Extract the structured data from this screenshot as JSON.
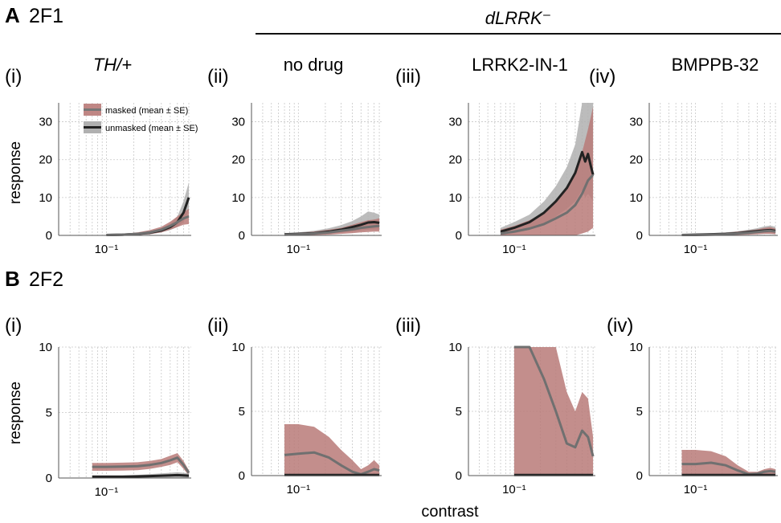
{
  "figure": {
    "sections": [
      {
        "letter": "A",
        "title": "2F1"
      },
      {
        "letter": "B",
        "title": "2F2"
      }
    ],
    "group_label": "dLRRK⁻",
    "conditions": [
      "TH/+",
      "no drug",
      "LRRK2-IN-1",
      "BMPPB-32"
    ],
    "panel_numerals": [
      "(i)",
      "(ii)",
      "(iii)",
      "(iv)"
    ],
    "ylabel": "response",
    "xlabel": "contrast",
    "x_tick_label": "10⁻¹",
    "legend": [
      {
        "label": "masked (mean ± SE)",
        "color": "#b97a78"
      },
      {
        "label": "unmasked (mean ± SE)",
        "color": "#2b2b2b"
      }
    ]
  },
  "colors": {
    "masked_band": "#b97a78",
    "masked_line": "#707070",
    "unmasked_band": "#b0b0b0",
    "unmasked_line": "#222222",
    "grid": "#c8c8c8"
  },
  "chart_data": [
    {
      "type": "line",
      "row": "A",
      "panel": "(i)",
      "condition": "TH/+",
      "xscale": "log",
      "xlim": [
        0.03,
        0.85
      ],
      "ylim": [
        0,
        35
      ],
      "yticks": [
        0,
        10,
        20,
        30
      ],
      "series": [
        {
          "name": "masked (mean ± SE)",
          "x": [
            0.1,
            0.15,
            0.22,
            0.3,
            0.4,
            0.5,
            0.6,
            0.7,
            0.8
          ],
          "mean": [
            0.1,
            0.2,
            0.4,
            0.8,
            1.5,
            2.5,
            3.5,
            4.5,
            5.0
          ],
          "lower": [
            0,
            0,
            0.1,
            0.3,
            0.8,
            1.5,
            2.2,
            2.8,
            3.0
          ],
          "upper": [
            0.3,
            0.4,
            0.8,
            1.4,
            2.3,
            3.6,
            5.0,
            6.2,
            7.0
          ]
        },
        {
          "name": "unmasked (mean ± SE)",
          "x": [
            0.1,
            0.15,
            0.22,
            0.3,
            0.4,
            0.5,
            0.6,
            0.7,
            0.8
          ],
          "mean": [
            0.1,
            0.2,
            0.4,
            0.7,
            1.3,
            2.2,
            3.5,
            6.0,
            10.0
          ],
          "lower": [
            0,
            0.05,
            0.2,
            0.4,
            0.8,
            1.4,
            2.2,
            3.5,
            6.5
          ],
          "upper": [
            0.3,
            0.4,
            0.7,
            1.1,
            1.9,
            3.1,
            5.0,
            9.0,
            14.0
          ]
        }
      ]
    },
    {
      "type": "line",
      "row": "A",
      "panel": "(ii)",
      "condition": "no drug",
      "xscale": "log",
      "xlim": [
        0.03,
        0.85
      ],
      "ylim": [
        0,
        35
      ],
      "yticks": [
        0,
        10,
        20,
        30
      ],
      "series": [
        {
          "name": "masked (mean ± SE)",
          "x": [
            0.07,
            0.1,
            0.15,
            0.22,
            0.3,
            0.4,
            0.5,
            0.6,
            0.7,
            0.8
          ],
          "mean": [
            0.2,
            0.3,
            0.5,
            0.8,
            1.2,
            1.6,
            2.0,
            2.2,
            2.4,
            2.5
          ],
          "lower": [
            0,
            0,
            0.1,
            0.2,
            0.4,
            0.6,
            0.8,
            0.9,
            1.0,
            1.0
          ],
          "upper": [
            0.5,
            0.7,
            1.0,
            1.5,
            2.0,
            2.8,
            3.5,
            4.0,
            4.2,
            4.5
          ]
        },
        {
          "name": "unmasked (mean ± SE)",
          "x": [
            0.07,
            0.1,
            0.15,
            0.22,
            0.3,
            0.4,
            0.5,
            0.6,
            0.7,
            0.8
          ],
          "mean": [
            0.3,
            0.4,
            0.6,
            1.0,
            1.5,
            2.2,
            2.8,
            3.4,
            3.5,
            3.3
          ],
          "lower": [
            0,
            0.1,
            0.2,
            0.4,
            0.7,
            1.0,
            1.2,
            1.5,
            1.6,
            1.5
          ],
          "upper": [
            0.6,
            0.8,
            1.2,
            1.9,
            2.7,
            3.8,
            5.0,
            6.3,
            6.0,
            5.5
          ]
        }
      ]
    },
    {
      "type": "line",
      "row": "A",
      "panel": "(iii)",
      "condition": "LRRK2-IN-1",
      "xscale": "log",
      "xlim": [
        0.03,
        0.85
      ],
      "ylim": [
        0,
        35
      ],
      "yticks": [
        0,
        10,
        20,
        30
      ],
      "series": [
        {
          "name": "masked (mean ± SE)",
          "x": [
            0.07,
            0.1,
            0.15,
            0.22,
            0.3,
            0.4,
            0.5,
            0.6,
            0.7,
            0.8
          ],
          "mean": [
            0.5,
            1.0,
            1.8,
            3.0,
            4.5,
            6.0,
            8.0,
            11.0,
            14.5,
            16.0
          ],
          "lower": [
            0,
            0,
            0,
            0,
            0,
            0,
            0,
            0.5,
            1.0,
            2.0
          ],
          "upper": [
            1.5,
            2.5,
            4.0,
            6.0,
            9.0,
            12.0,
            16.0,
            22.0,
            28.0,
            34.0
          ]
        },
        {
          "name": "unmasked (mean ± SE)",
          "x": [
            0.07,
            0.1,
            0.15,
            0.22,
            0.3,
            0.4,
            0.5,
            0.6,
            0.65,
            0.7,
            0.75,
            0.8
          ],
          "mean": [
            1.0,
            2.0,
            3.5,
            6.0,
            9.0,
            12.5,
            16.5,
            22.0,
            19.5,
            21.5,
            18.5,
            16.0
          ],
          "lower": [
            0,
            0.5,
            1.5,
            3.0,
            5.0,
            7.0,
            9.0,
            12.0,
            10.0,
            11.0,
            10.0,
            9.0
          ],
          "upper": [
            2.0,
            3.5,
            5.5,
            9.0,
            13.0,
            18.0,
            24.0,
            35.0,
            35.0,
            35.0,
            35.0,
            35.0
          ]
        }
      ]
    },
    {
      "type": "line",
      "row": "A",
      "panel": "(iv)",
      "condition": "BMPPB-32",
      "xscale": "log",
      "xlim": [
        0.03,
        0.85
      ],
      "ylim": [
        0,
        35
      ],
      "yticks": [
        0,
        10,
        20,
        30
      ],
      "series": [
        {
          "name": "masked (mean ± SE)",
          "x": [
            0.07,
            0.1,
            0.15,
            0.22,
            0.3,
            0.4,
            0.5,
            0.6,
            0.7,
            0.8
          ],
          "mean": [
            0.1,
            0.1,
            0.2,
            0.3,
            0.5,
            0.7,
            0.9,
            1.1,
            1.2,
            1.0
          ],
          "lower": [
            0,
            0,
            0,
            0,
            0.1,
            0.2,
            0.3,
            0.4,
            0.4,
            0.3
          ],
          "upper": [
            0.3,
            0.3,
            0.5,
            0.7,
            1.0,
            1.3,
            1.6,
            2.0,
            2.2,
            1.8
          ]
        },
        {
          "name": "unmasked (mean ± SE)",
          "x": [
            0.07,
            0.1,
            0.15,
            0.22,
            0.3,
            0.4,
            0.5,
            0.6,
            0.7,
            0.8
          ],
          "mean": [
            0.1,
            0.2,
            0.3,
            0.4,
            0.6,
            0.9,
            1.1,
            1.3,
            1.4,
            1.2
          ],
          "lower": [
            0,
            0,
            0.1,
            0.1,
            0.2,
            0.4,
            0.5,
            0.6,
            0.6,
            0.5
          ],
          "upper": [
            0.3,
            0.4,
            0.6,
            0.8,
            1.1,
            1.5,
            1.9,
            2.4,
            2.6,
            2.3
          ]
        }
      ]
    },
    {
      "type": "line",
      "row": "B",
      "panel": "(i)",
      "condition": "TH/+",
      "xscale": "log",
      "xlim": [
        0.03,
        0.85
      ],
      "ylim": [
        0,
        10
      ],
      "yticks": [
        0,
        5,
        10
      ],
      "series": [
        {
          "name": "masked (mean ± SE)",
          "x": [
            0.07,
            0.1,
            0.15,
            0.22,
            0.3,
            0.4,
            0.5,
            0.6,
            0.7,
            0.8
          ],
          "mean": [
            0.85,
            0.85,
            0.87,
            0.9,
            1.0,
            1.15,
            1.35,
            1.55,
            1.0,
            0.4
          ],
          "lower": [
            0.55,
            0.55,
            0.57,
            0.6,
            0.7,
            0.85,
            1.0,
            1.2,
            0.7,
            0.2
          ],
          "upper": [
            1.15,
            1.15,
            1.17,
            1.2,
            1.3,
            1.45,
            1.7,
            1.9,
            1.3,
            0.6
          ]
        },
        {
          "name": "unmasked (mean ± SE)",
          "x": [
            0.07,
            0.1,
            0.15,
            0.22,
            0.3,
            0.4,
            0.5,
            0.6,
            0.7,
            0.8
          ],
          "mean": [
            0.1,
            0.1,
            0.1,
            0.12,
            0.15,
            0.18,
            0.2,
            0.22,
            0.2,
            0.18
          ],
          "lower": [
            0,
            0,
            0,
            0,
            0,
            0,
            0,
            0,
            0,
            0
          ],
          "upper": [
            0.2,
            0.2,
            0.2,
            0.24,
            0.3,
            0.35,
            0.4,
            0.44,
            0.4,
            0.36
          ]
        }
      ]
    },
    {
      "type": "line",
      "row": "B",
      "panel": "(ii)",
      "condition": "no drug",
      "xscale": "log",
      "xlim": [
        0.03,
        0.85
      ],
      "ylim": [
        0,
        10
      ],
      "yticks": [
        0,
        5,
        10
      ],
      "series": [
        {
          "name": "masked (mean ± SE)",
          "x": [
            0.07,
            0.1,
            0.15,
            0.22,
            0.3,
            0.4,
            0.5,
            0.6,
            0.7,
            0.8
          ],
          "mean": [
            1.6,
            1.7,
            1.8,
            1.4,
            0.8,
            0.3,
            0.1,
            0.3,
            0.5,
            0.4
          ],
          "lower": [
            0,
            0,
            0,
            0,
            0,
            0,
            0,
            0,
            0,
            0
          ],
          "upper": [
            4.0,
            4.0,
            3.8,
            3.0,
            2.0,
            1.2,
            0.5,
            0.8,
            1.2,
            0.8
          ]
        },
        {
          "name": "unmasked (mean ± SE)",
          "x": [
            0.07,
            0.1,
            0.15,
            0.22,
            0.3,
            0.4,
            0.5,
            0.6,
            0.7,
            0.8
          ],
          "mean": [
            0.05,
            0.05,
            0.05,
            0.05,
            0.05,
            0.05,
            0.05,
            0.05,
            0.05,
            0.05
          ],
          "lower": [
            0,
            0,
            0,
            0,
            0,
            0,
            0,
            0,
            0,
            0
          ],
          "upper": [
            0.1,
            0.1,
            0.1,
            0.1,
            0.1,
            0.1,
            0.1,
            0.1,
            0.1,
            0.1
          ]
        }
      ]
    },
    {
      "type": "line",
      "row": "B",
      "panel": "(iii)",
      "condition": "LRRK2-IN-1",
      "xscale": "log",
      "xlim": [
        0.03,
        0.85
      ],
      "ylim": [
        0,
        10
      ],
      "yticks": [
        0,
        5,
        10
      ],
      "series": [
        {
          "name": "masked (mean ± SE)",
          "x": [
            0.1,
            0.15,
            0.22,
            0.3,
            0.4,
            0.5,
            0.6,
            0.7,
            0.8
          ],
          "mean": [
            10.5,
            10.0,
            7.5,
            5.0,
            2.5,
            2.2,
            3.5,
            3.0,
            1.5
          ],
          "lower": [
            0,
            0,
            0,
            0,
            0,
            0,
            0,
            0,
            0
          ],
          "upper": [
            10,
            10,
            10,
            10,
            6.5,
            5.0,
            6.5,
            6.0,
            3.0
          ]
        },
        {
          "name": "unmasked (mean ± SE)",
          "x": [
            0.1,
            0.15,
            0.22,
            0.3,
            0.4,
            0.5,
            0.6,
            0.7,
            0.8
          ],
          "mean": [
            0.05,
            0.05,
            0.05,
            0.05,
            0.05,
            0.05,
            0.05,
            0.05,
            0.05
          ],
          "lower": [
            0,
            0,
            0,
            0,
            0,
            0,
            0,
            0,
            0
          ],
          "upper": [
            0.1,
            0.1,
            0.1,
            0.1,
            0.1,
            0.1,
            0.1,
            0.1,
            0.1
          ]
        }
      ]
    },
    {
      "type": "line",
      "row": "B",
      "panel": "(iv)",
      "condition": "BMPPB-32",
      "xscale": "log",
      "xlim": [
        0.03,
        0.85
      ],
      "ylim": [
        0,
        10
      ],
      "yticks": [
        0,
        5,
        10
      ],
      "series": [
        {
          "name": "masked (mean ± SE)",
          "x": [
            0.07,
            0.1,
            0.15,
            0.22,
            0.3,
            0.4,
            0.5,
            0.6,
            0.7,
            0.8
          ],
          "mean": [
            0.9,
            0.9,
            1.0,
            0.8,
            0.4,
            0.1,
            0.15,
            0.3,
            0.35,
            0.3
          ],
          "lower": [
            0,
            0,
            0,
            0,
            0,
            0,
            0,
            0.1,
            0.1,
            0.1
          ],
          "upper": [
            2.0,
            2.0,
            1.9,
            1.5,
            0.8,
            0.3,
            0.3,
            0.5,
            0.6,
            0.5
          ]
        },
        {
          "name": "unmasked (mean ± SE)",
          "x": [
            0.07,
            0.1,
            0.15,
            0.22,
            0.3,
            0.4,
            0.5,
            0.6,
            0.7,
            0.8
          ],
          "mean": [
            0.05,
            0.05,
            0.05,
            0.05,
            0.05,
            0.05,
            0.05,
            0.05,
            0.05,
            0.05
          ],
          "lower": [
            0,
            0,
            0,
            0,
            0,
            0,
            0,
            0,
            0,
            0
          ],
          "upper": [
            0.1,
            0.1,
            0.1,
            0.1,
            0.1,
            0.1,
            0.1,
            0.1,
            0.1,
            0.1
          ]
        }
      ]
    }
  ]
}
